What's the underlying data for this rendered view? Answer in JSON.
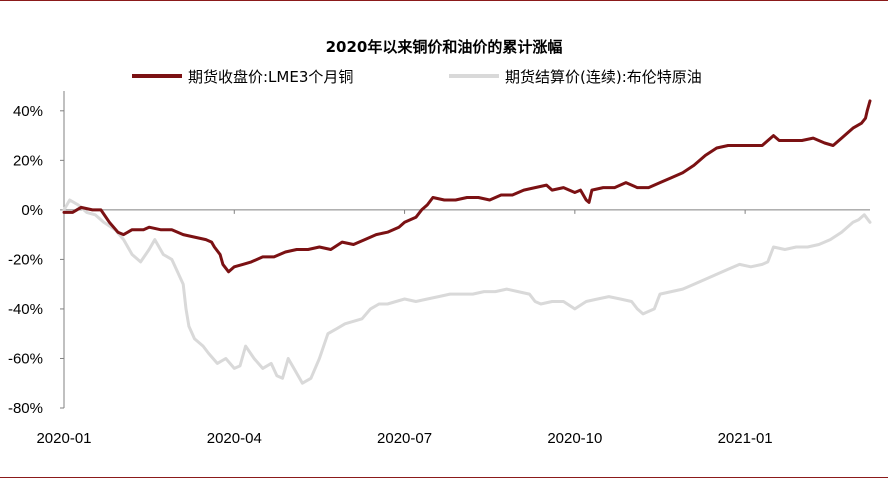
{
  "chart_data": {
    "type": "line",
    "title": "2020年以来铜价和油价的累计涨幅",
    "xlabel": "",
    "ylabel": "",
    "x_tick_labels": [
      "2020-01",
      "2020-04",
      "2020-07",
      "2020-10",
      "2021-01"
    ],
    "x_ticks_month_index": [
      0,
      3,
      6,
      9,
      12
    ],
    "x_range_month_index": [
      0,
      14.2
    ],
    "y_tick_labels": [
      "40%",
      "20%",
      "0%",
      "-20%",
      "-40%",
      "-60%",
      "-80%"
    ],
    "y_ticks": [
      40,
      20,
      0,
      -20,
      -40,
      -60,
      -80
    ],
    "ylim": [
      -80,
      48
    ],
    "grid": false,
    "legend_position": "top",
    "colors": {
      "copper": "#7B1113",
      "brent": "#D9D9D9",
      "frame": "#8B1A1A",
      "axis": "#808080"
    },
    "series": [
      {
        "name": "期货收盘价:LME3个月铜",
        "color": "#7B1113",
        "points": [
          [
            0.0,
            -1
          ],
          [
            0.15,
            -1
          ],
          [
            0.3,
            1
          ],
          [
            0.5,
            0
          ],
          [
            0.65,
            0
          ],
          [
            0.8,
            -5
          ],
          [
            0.95,
            -9
          ],
          [
            1.05,
            -10
          ],
          [
            1.2,
            -8
          ],
          [
            1.4,
            -8
          ],
          [
            1.5,
            -7
          ],
          [
            1.7,
            -8
          ],
          [
            1.9,
            -8
          ],
          [
            2.1,
            -10
          ],
          [
            2.3,
            -11
          ],
          [
            2.5,
            -12
          ],
          [
            2.6,
            -13
          ],
          [
            2.65,
            -15
          ],
          [
            2.75,
            -18
          ],
          [
            2.8,
            -22
          ],
          [
            2.9,
            -25
          ],
          [
            3.0,
            -23
          ],
          [
            3.15,
            -22
          ],
          [
            3.3,
            -21
          ],
          [
            3.5,
            -19
          ],
          [
            3.7,
            -19
          ],
          [
            3.9,
            -17
          ],
          [
            4.1,
            -16
          ],
          [
            4.3,
            -16
          ],
          [
            4.5,
            -15
          ],
          [
            4.7,
            -16
          ],
          [
            4.9,
            -13
          ],
          [
            5.1,
            -14
          ],
          [
            5.3,
            -12
          ],
          [
            5.5,
            -10
          ],
          [
            5.7,
            -9
          ],
          [
            5.9,
            -7
          ],
          [
            6.0,
            -5
          ],
          [
            6.2,
            -3
          ],
          [
            6.3,
            0
          ],
          [
            6.4,
            2
          ],
          [
            6.5,
            5
          ],
          [
            6.7,
            4
          ],
          [
            6.9,
            4
          ],
          [
            7.1,
            5
          ],
          [
            7.3,
            5
          ],
          [
            7.5,
            4
          ],
          [
            7.7,
            6
          ],
          [
            7.9,
            6
          ],
          [
            8.1,
            8
          ],
          [
            8.3,
            9
          ],
          [
            8.5,
            10
          ],
          [
            8.6,
            8
          ],
          [
            8.8,
            9
          ],
          [
            9.0,
            7
          ],
          [
            9.1,
            8
          ],
          [
            9.2,
            4
          ],
          [
            9.25,
            3
          ],
          [
            9.3,
            8
          ],
          [
            9.5,
            9
          ],
          [
            9.7,
            9
          ],
          [
            9.9,
            11
          ],
          [
            10.1,
            9
          ],
          [
            10.3,
            9
          ],
          [
            10.5,
            11
          ],
          [
            10.7,
            13
          ],
          [
            10.9,
            15
          ],
          [
            11.1,
            18
          ],
          [
            11.3,
            22
          ],
          [
            11.5,
            25
          ],
          [
            11.7,
            26
          ],
          [
            11.9,
            26
          ],
          [
            12.1,
            26
          ],
          [
            12.3,
            26
          ],
          [
            12.5,
            30
          ],
          [
            12.6,
            28
          ],
          [
            12.8,
            28
          ],
          [
            13.0,
            28
          ],
          [
            13.2,
            29
          ],
          [
            13.4,
            27
          ],
          [
            13.55,
            26
          ],
          [
            13.7,
            29
          ],
          [
            13.9,
            33
          ],
          [
            14.05,
            35
          ],
          [
            14.12,
            37
          ],
          [
            14.15,
            40
          ],
          [
            14.2,
            44
          ]
        ]
      },
      {
        "name": "期货结算价(连续):布伦特原油",
        "color": "#D9D9D9",
        "points": [
          [
            0.0,
            0
          ],
          [
            0.1,
            4
          ],
          [
            0.25,
            2
          ],
          [
            0.4,
            -1
          ],
          [
            0.55,
            -2
          ],
          [
            0.7,
            -5
          ],
          [
            0.9,
            -8
          ],
          [
            1.05,
            -12
          ],
          [
            1.2,
            -18
          ],
          [
            1.35,
            -21
          ],
          [
            1.5,
            -16
          ],
          [
            1.6,
            -12
          ],
          [
            1.75,
            -18
          ],
          [
            1.9,
            -20
          ],
          [
            2.0,
            -25
          ],
          [
            2.1,
            -30
          ],
          [
            2.15,
            -40
          ],
          [
            2.2,
            -47
          ],
          [
            2.3,
            -52
          ],
          [
            2.45,
            -55
          ],
          [
            2.55,
            -58
          ],
          [
            2.7,
            -62
          ],
          [
            2.85,
            -60
          ],
          [
            3.0,
            -64
          ],
          [
            3.1,
            -63
          ],
          [
            3.2,
            -55
          ],
          [
            3.35,
            -60
          ],
          [
            3.5,
            -64
          ],
          [
            3.65,
            -62
          ],
          [
            3.75,
            -67
          ],
          [
            3.85,
            -68
          ],
          [
            3.95,
            -60
          ],
          [
            4.05,
            -64
          ],
          [
            4.2,
            -70
          ],
          [
            4.35,
            -68
          ],
          [
            4.5,
            -60
          ],
          [
            4.65,
            -50
          ],
          [
            4.8,
            -48
          ],
          [
            4.95,
            -46
          ],
          [
            5.1,
            -45
          ],
          [
            5.25,
            -44
          ],
          [
            5.4,
            -40
          ],
          [
            5.55,
            -38
          ],
          [
            5.7,
            -38
          ],
          [
            5.85,
            -37
          ],
          [
            6.0,
            -36
          ],
          [
            6.2,
            -37
          ],
          [
            6.4,
            -36
          ],
          [
            6.6,
            -35
          ],
          [
            6.8,
            -34
          ],
          [
            7.0,
            -34
          ],
          [
            7.2,
            -34
          ],
          [
            7.4,
            -33
          ],
          [
            7.6,
            -33
          ],
          [
            7.8,
            -32
          ],
          [
            8.0,
            -33
          ],
          [
            8.2,
            -34
          ],
          [
            8.3,
            -37
          ],
          [
            8.4,
            -38
          ],
          [
            8.6,
            -37
          ],
          [
            8.8,
            -37
          ],
          [
            9.0,
            -40
          ],
          [
            9.2,
            -37
          ],
          [
            9.4,
            -36
          ],
          [
            9.6,
            -35
          ],
          [
            9.8,
            -36
          ],
          [
            10.0,
            -37
          ],
          [
            10.1,
            -40
          ],
          [
            10.2,
            -42
          ],
          [
            10.4,
            -40
          ],
          [
            10.5,
            -34
          ],
          [
            10.7,
            -33
          ],
          [
            10.9,
            -32
          ],
          [
            11.1,
            -30
          ],
          [
            11.3,
            -28
          ],
          [
            11.5,
            -26
          ],
          [
            11.7,
            -24
          ],
          [
            11.9,
            -22
          ],
          [
            12.1,
            -23
          ],
          [
            12.3,
            -22
          ],
          [
            12.4,
            -21
          ],
          [
            12.5,
            -15
          ],
          [
            12.7,
            -16
          ],
          [
            12.9,
            -15
          ],
          [
            13.1,
            -15
          ],
          [
            13.3,
            -14
          ],
          [
            13.5,
            -12
          ],
          [
            13.7,
            -9
          ],
          [
            13.9,
            -5
          ],
          [
            14.0,
            -4
          ],
          [
            14.1,
            -2
          ],
          [
            14.2,
            -5
          ]
        ]
      }
    ]
  }
}
